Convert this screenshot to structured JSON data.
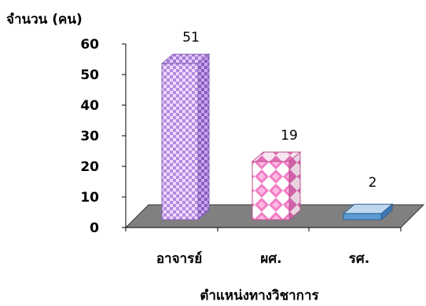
{
  "chart_data": {
    "type": "bar",
    "style": "3d-column",
    "title": "",
    "ylabel": "จำนวน (คน)",
    "xlabel": "ตำแหน่งทางวิชาการ",
    "ylim": [
      0,
      60
    ],
    "yticks": [
      0,
      10,
      20,
      30,
      40,
      50,
      60
    ],
    "categories": [
      "อาจารย์",
      "ผศ.",
      "รศ."
    ],
    "values": [
      51,
      19,
      2
    ],
    "data_labels": [
      "51",
      "19",
      "2"
    ],
    "grid": false,
    "legend": "none",
    "bar_fills": [
      "purple-checker",
      "pink-diamond",
      "blue"
    ],
    "colors": {
      "bar1_light": "#F2D9FF",
      "bar1_dark": "#9966CC",
      "bar2_light": "#FFFFFF",
      "bar2_dark": "#F07CC4",
      "bar3": "#5B9BD5",
      "floor": "#808080"
    }
  }
}
